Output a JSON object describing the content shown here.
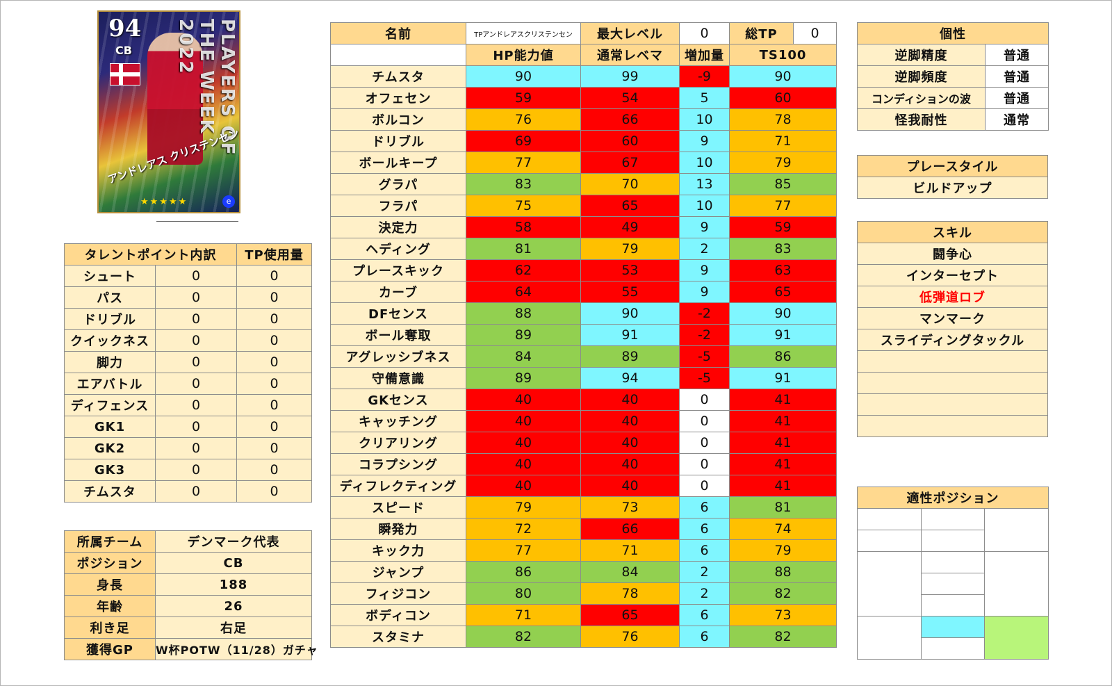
{
  "card": {
    "rating": "94",
    "position": "CB",
    "name": "アンドレアス クリステンセン",
    "banner": "PLAYERS OF THE WEEK 2022",
    "stars": "★★★★★",
    "logo": "e",
    "icons": {
      "flag": "denmark-flag-icon",
      "logo": "efootball-logo-icon"
    }
  },
  "talent": {
    "headers": [
      "タレントポイント内訳",
      "TP使用量"
    ],
    "rows": [
      {
        "label": "シュート",
        "points": "0",
        "used": "0"
      },
      {
        "label": "パス",
        "points": "0",
        "used": "0"
      },
      {
        "label": "ドリブル",
        "points": "0",
        "used": "0"
      },
      {
        "label": "クイックネス",
        "points": "0",
        "used": "0"
      },
      {
        "label": "脚力",
        "points": "0",
        "used": "0"
      },
      {
        "label": "エアバトル",
        "points": "0",
        "used": "0"
      },
      {
        "label": "ディフェンス",
        "points": "0",
        "used": "0"
      },
      {
        "label": "GK1",
        "points": "0",
        "used": "0"
      },
      {
        "label": "GK2",
        "points": "0",
        "used": "0"
      },
      {
        "label": "GK3",
        "points": "0",
        "used": "0"
      },
      {
        "label": "チムスタ",
        "points": "0",
        "used": "0"
      }
    ]
  },
  "info": [
    {
      "label": "所属チーム",
      "value": "デンマーク代表"
    },
    {
      "label": "ポジション",
      "value": "CB"
    },
    {
      "label": "身長",
      "value": "188"
    },
    {
      "label": "年齢",
      "value": "26"
    },
    {
      "label": "利き足",
      "value": "右足"
    },
    {
      "label": "獲得GP",
      "value": "W杯POTW（11/28）ガチャ"
    }
  ],
  "stats": {
    "name_label": "名前",
    "name_value": "TPアンドレアスクリステンセン",
    "max_level_label": "最大レベル",
    "max_level_value": "0",
    "total_tp_label": "総TP",
    "total_tp_value": "0",
    "columns": [
      "HP能力値",
      "通常レベマ",
      "増加量",
      "TS100"
    ],
    "colors": {
      "cyan": "#7ff6ff",
      "red": "#ff0000",
      "orange": "#ffc000",
      "green": "#92d050",
      "white": "#ffffff"
    },
    "rows": [
      {
        "label": "チムスタ",
        "hp": "90",
        "hp_c": "cy",
        "lv": "99",
        "lv_c": "cy",
        "inc": "-9",
        "inc_c": "rd",
        "ts": "90",
        "ts_c": "cy"
      },
      {
        "label": "オフェセン",
        "hp": "59",
        "hp_c": "rd",
        "lv": "54",
        "lv_c": "rd",
        "inc": "5",
        "inc_c": "cy",
        "ts": "60",
        "ts_c": "rd"
      },
      {
        "label": "ボルコン",
        "hp": "76",
        "hp_c": "or",
        "lv": "66",
        "lv_c": "rd",
        "inc": "10",
        "inc_c": "cy",
        "ts": "78",
        "ts_c": "or"
      },
      {
        "label": "ドリブル",
        "hp": "69",
        "hp_c": "rd",
        "lv": "60",
        "lv_c": "rd",
        "inc": "9",
        "inc_c": "cy",
        "ts": "71",
        "ts_c": "or"
      },
      {
        "label": "ボールキープ",
        "hp": "77",
        "hp_c": "or",
        "lv": "67",
        "lv_c": "rd",
        "inc": "10",
        "inc_c": "cy",
        "ts": "79",
        "ts_c": "or"
      },
      {
        "label": "グラパ",
        "hp": "83",
        "hp_c": "gr",
        "lv": "70",
        "lv_c": "or",
        "inc": "13",
        "inc_c": "cy",
        "ts": "85",
        "ts_c": "gr"
      },
      {
        "label": "フラパ",
        "hp": "75",
        "hp_c": "or",
        "lv": "65",
        "lv_c": "rd",
        "inc": "10",
        "inc_c": "cy",
        "ts": "77",
        "ts_c": "or"
      },
      {
        "label": "決定力",
        "hp": "58",
        "hp_c": "rd",
        "lv": "49",
        "lv_c": "rd",
        "inc": "9",
        "inc_c": "cy",
        "ts": "59",
        "ts_c": "rd"
      },
      {
        "label": "ヘディング",
        "hp": "81",
        "hp_c": "gr",
        "lv": "79",
        "lv_c": "or",
        "inc": "2",
        "inc_c": "cy",
        "ts": "83",
        "ts_c": "gr"
      },
      {
        "label": "プレースキック",
        "hp": "62",
        "hp_c": "rd",
        "lv": "53",
        "lv_c": "rd",
        "inc": "9",
        "inc_c": "cy",
        "ts": "63",
        "ts_c": "rd"
      },
      {
        "label": "カーブ",
        "hp": "64",
        "hp_c": "rd",
        "lv": "55",
        "lv_c": "rd",
        "inc": "9",
        "inc_c": "cy",
        "ts": "65",
        "ts_c": "rd"
      },
      {
        "label": "DFセンス",
        "hp": "88",
        "hp_c": "gr",
        "lv": "90",
        "lv_c": "cy",
        "inc": "-2",
        "inc_c": "rd",
        "ts": "90",
        "ts_c": "cy"
      },
      {
        "label": "ボール奪取",
        "hp": "89",
        "hp_c": "gr",
        "lv": "91",
        "lv_c": "cy",
        "inc": "-2",
        "inc_c": "rd",
        "ts": "91",
        "ts_c": "cy"
      },
      {
        "label": "アグレッシブネス",
        "hp": "84",
        "hp_c": "gr",
        "lv": "89",
        "lv_c": "gr",
        "inc": "-5",
        "inc_c": "rd",
        "ts": "86",
        "ts_c": "gr"
      },
      {
        "label": "守備意識",
        "hp": "89",
        "hp_c": "gr",
        "lv": "94",
        "lv_c": "cy",
        "inc": "-5",
        "inc_c": "rd",
        "ts": "91",
        "ts_c": "cy"
      },
      {
        "label": "GKセンス",
        "hp": "40",
        "hp_c": "rd",
        "lv": "40",
        "lv_c": "rd",
        "inc": "0",
        "inc_c": "wht",
        "ts": "41",
        "ts_c": "rd"
      },
      {
        "label": "キャッチング",
        "hp": "40",
        "hp_c": "rd",
        "lv": "40",
        "lv_c": "rd",
        "inc": "0",
        "inc_c": "wht",
        "ts": "41",
        "ts_c": "rd"
      },
      {
        "label": "クリアリング",
        "hp": "40",
        "hp_c": "rd",
        "lv": "40",
        "lv_c": "rd",
        "inc": "0",
        "inc_c": "wht",
        "ts": "41",
        "ts_c": "rd"
      },
      {
        "label": "コラプシング",
        "hp": "40",
        "hp_c": "rd",
        "lv": "40",
        "lv_c": "rd",
        "inc": "0",
        "inc_c": "wht",
        "ts": "41",
        "ts_c": "rd"
      },
      {
        "label": "ディフレクティング",
        "hp": "40",
        "hp_c": "rd",
        "lv": "40",
        "lv_c": "rd",
        "inc": "0",
        "inc_c": "wht",
        "ts": "41",
        "ts_c": "rd"
      },
      {
        "label": "スピード",
        "hp": "79",
        "hp_c": "or",
        "lv": "73",
        "lv_c": "or",
        "inc": "6",
        "inc_c": "cy",
        "ts": "81",
        "ts_c": "gr"
      },
      {
        "label": "瞬発力",
        "hp": "72",
        "hp_c": "or",
        "lv": "66",
        "lv_c": "rd",
        "inc": "6",
        "inc_c": "cy",
        "ts": "74",
        "ts_c": "or"
      },
      {
        "label": "キック力",
        "hp": "77",
        "hp_c": "or",
        "lv": "71",
        "lv_c": "or",
        "inc": "6",
        "inc_c": "cy",
        "ts": "79",
        "ts_c": "or"
      },
      {
        "label": "ジャンプ",
        "hp": "86",
        "hp_c": "gr",
        "lv": "84",
        "lv_c": "gr",
        "inc": "2",
        "inc_c": "cy",
        "ts": "88",
        "ts_c": "gr"
      },
      {
        "label": "フィジコン",
        "hp": "80",
        "hp_c": "gr",
        "lv": "78",
        "lv_c": "or",
        "inc": "2",
        "inc_c": "cy",
        "ts": "82",
        "ts_c": "gr"
      },
      {
        "label": "ボディコン",
        "hp": "71",
        "hp_c": "or",
        "lv": "65",
        "lv_c": "rd",
        "inc": "6",
        "inc_c": "cy",
        "ts": "73",
        "ts_c": "or"
      },
      {
        "label": "スタミナ",
        "hp": "82",
        "hp_c": "gr",
        "lv": "76",
        "lv_c": "or",
        "inc": "6",
        "inc_c": "cy",
        "ts": "82",
        "ts_c": "gr"
      }
    ]
  },
  "personality": {
    "header": "個性",
    "rows": [
      {
        "label": "逆脚精度",
        "value": "普通"
      },
      {
        "label": "逆脚頻度",
        "value": "普通"
      },
      {
        "label": "コンディションの波",
        "value": "普通"
      },
      {
        "label": "怪我耐性",
        "value": "通常"
      }
    ]
  },
  "playstyle": {
    "header": "プレースタイル",
    "value": "ビルドアップ"
  },
  "skills": {
    "header": "スキル",
    "items": [
      {
        "name": "闘争心",
        "highlight": false
      },
      {
        "name": "インターセプト",
        "highlight": false
      },
      {
        "name": "低弾道ロブ",
        "highlight": true
      },
      {
        "name": "マンマーク",
        "highlight": false
      },
      {
        "name": "スライディングタックル",
        "highlight": false
      },
      {
        "name": "",
        "highlight": false
      },
      {
        "name": "",
        "highlight": false
      },
      {
        "name": "",
        "highlight": false
      },
      {
        "name": "",
        "highlight": false
      }
    ]
  },
  "positions": {
    "header": "適性ポジション"
  }
}
